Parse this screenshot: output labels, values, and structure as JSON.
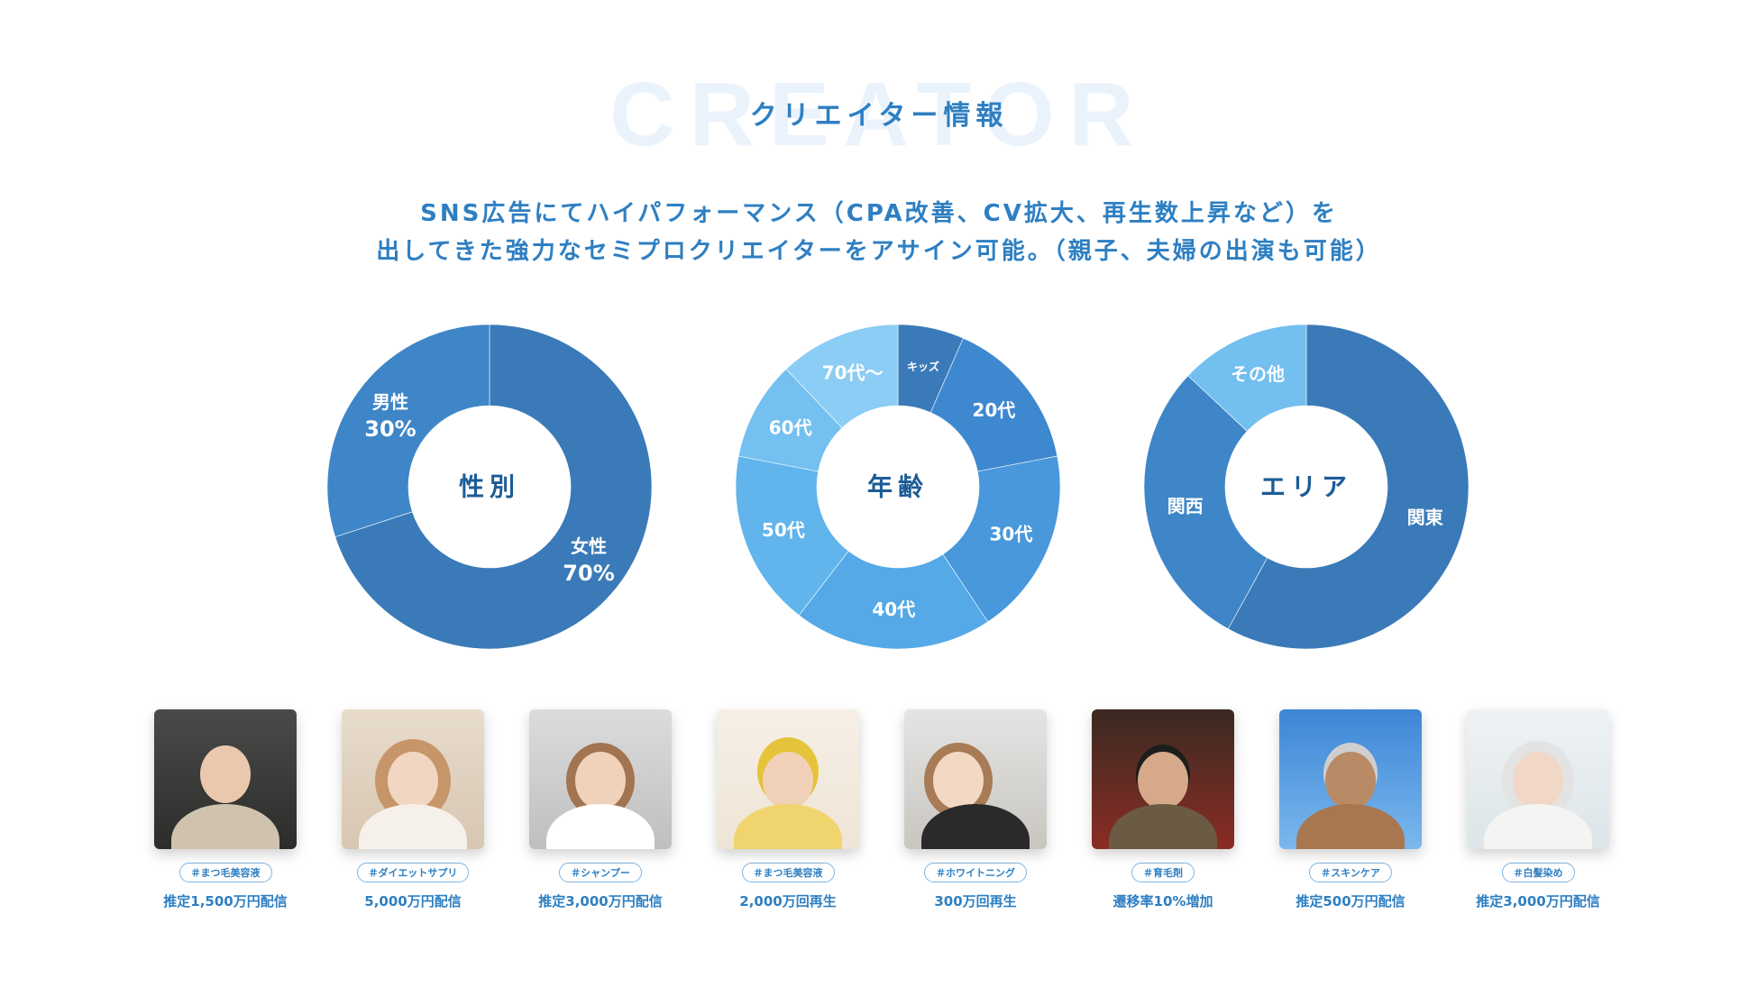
{
  "header": {
    "bg_word": "CREATOR",
    "title": "クリエイター情報"
  },
  "lead": {
    "line1": "SNS広告にてハイパフォーマンス（CPA改善、CV拡大、再生数上昇など）を",
    "line2": "出してきた強力なセミプロクリエイターをアサイン可能。（親子、夫婦の出演も可能）"
  },
  "chart_data": [
    {
      "type": "pie",
      "title": "性別",
      "categories": [
        "女性",
        "男性"
      ],
      "values": [
        70,
        30
      ],
      "value_labels": [
        "70%",
        "30%"
      ],
      "colors": [
        "#3a7ab8",
        "#3f86c8"
      ]
    },
    {
      "type": "pie",
      "title": "年齢",
      "categories": [
        "キッズ",
        "20代",
        "30代",
        "40代",
        "50代",
        "60代",
        "70代〜"
      ],
      "values": [
        6,
        14,
        17,
        18,
        16,
        9,
        11
      ],
      "colors": [
        "#3a7ab8",
        "#3e88cf",
        "#4898db",
        "#54a9e6",
        "#62b4ec",
        "#74c0f0",
        "#8bcdf4"
      ]
    },
    {
      "type": "pie",
      "title": "エリア",
      "categories": [
        "関東",
        "関西",
        "その他"
      ],
      "values": [
        58,
        29,
        13
      ],
      "colors": [
        "#3a7ab8",
        "#3f86c8",
        "#72bff0"
      ]
    }
  ],
  "creators": [
    {
      "tag": "＃まつ毛美容液",
      "stat": "推定1,500万円配信"
    },
    {
      "tag": "＃ダイエットサプリ",
      "stat": "5,000万円配信"
    },
    {
      "tag": "＃シャンプー",
      "stat": "推定3,000万円配信"
    },
    {
      "tag": "＃まつ毛美容液",
      "stat": "2,000万回再生"
    },
    {
      "tag": "＃ホワイトニング",
      "stat": "300万回再生"
    },
    {
      "tag": "＃育毛剤",
      "stat": "遷移率10%増加"
    },
    {
      "tag": "＃スキンケア",
      "stat": "推定500万円配信"
    },
    {
      "tag": "＃白髪染め",
      "stat": "推定3,000万円配信"
    }
  ]
}
